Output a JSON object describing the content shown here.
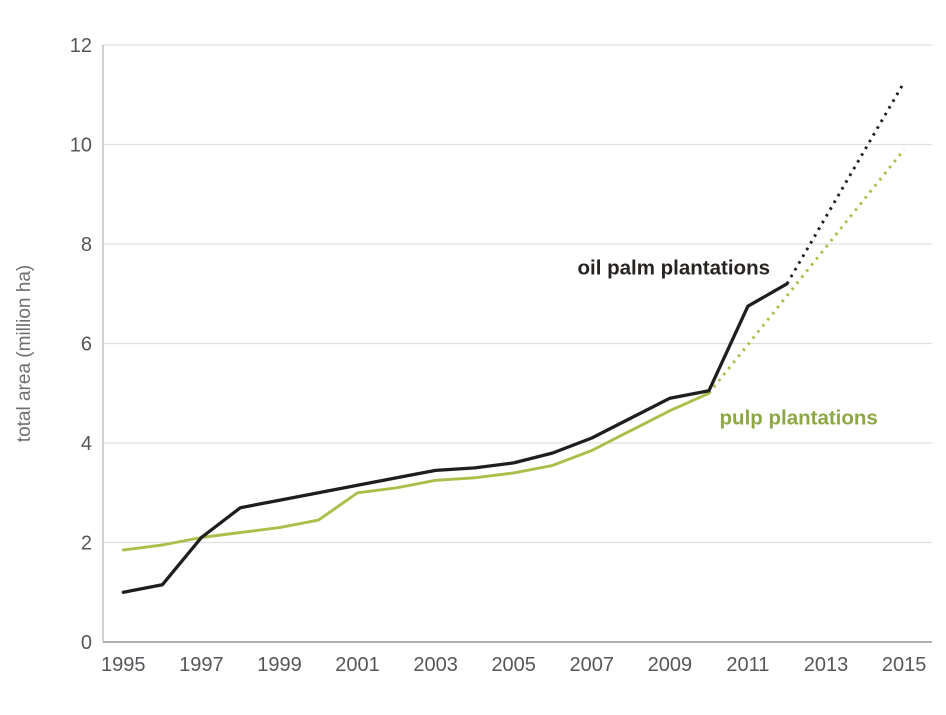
{
  "figure": {
    "background": "#ffffff"
  },
  "chart_data": {
    "type": "line",
    "title": "",
    "xlabel": "",
    "ylabel": "total area (million ha)",
    "ylim": [
      0,
      12
    ],
    "yticks": [
      0,
      2,
      4,
      6,
      8,
      10,
      12
    ],
    "xticks": [
      1995,
      1997,
      1999,
      2001,
      2003,
      2005,
      2007,
      2009,
      2011,
      2013,
      2015
    ],
    "xlim": [
      1994.5,
      2015.6
    ],
    "grid": "horizontal",
    "legend_position": "inline-labels",
    "series": [
      {
        "id": "pulp-solid",
        "name": "pulp plantations",
        "style": "solid",
        "color": "#a8c04a",
        "x": [
          1995,
          1996,
          1997,
          1998,
          1999,
          2000,
          2001,
          2002,
          2003,
          2004,
          2005,
          2006,
          2007,
          2008,
          2009,
          2010
        ],
        "values": [
          1.85,
          1.95,
          2.1,
          2.2,
          2.3,
          2.45,
          3.0,
          3.1,
          3.25,
          3.3,
          3.4,
          3.55,
          3.85,
          4.25,
          4.65,
          5.0
        ]
      },
      {
        "id": "pulp-projection",
        "name": "pulp plantations (projection)",
        "style": "dashed",
        "color": "#a8c04a",
        "x": [
          2010,
          2015
        ],
        "values": [
          5.0,
          9.9
        ]
      },
      {
        "id": "oil-palm-solid",
        "name": "oil palm plantations",
        "style": "solid",
        "color": "#1f1e1c",
        "x": [
          1995,
          1996,
          1997,
          1998,
          1999,
          2000,
          2001,
          2002,
          2003,
          2004,
          2005,
          2006,
          2007,
          2008,
          2009,
          2010,
          2011,
          2012
        ],
        "values": [
          1.0,
          1.15,
          2.1,
          2.7,
          2.85,
          3.0,
          3.15,
          3.3,
          3.45,
          3.5,
          3.6,
          3.8,
          4.1,
          4.5,
          4.9,
          5.05,
          6.75,
          7.2
        ]
      },
      {
        "id": "oil-palm-projection",
        "name": "oil palm plantations (projection)",
        "style": "dashed",
        "color": "#1f1e1c",
        "x": [
          2012,
          2015
        ],
        "values": [
          7.2,
          11.25
        ]
      }
    ],
    "annotations": [
      {
        "id": "oil-palm-label",
        "text": "oil palm plantations",
        "x": 2009.1,
        "y": 7.52,
        "color": "#262321"
      },
      {
        "id": "pulp-label",
        "text": "pulp plantations",
        "x": 2012.3,
        "y": 4.5,
        "color": "#8ca744"
      }
    ]
  },
  "colors": {
    "grid": "#e0e0e0",
    "axis_left": "#c4c4c4",
    "axis_bottom": "#aeaeae",
    "tick_label": "#55565a",
    "axis_title": "#6e6f72"
  }
}
